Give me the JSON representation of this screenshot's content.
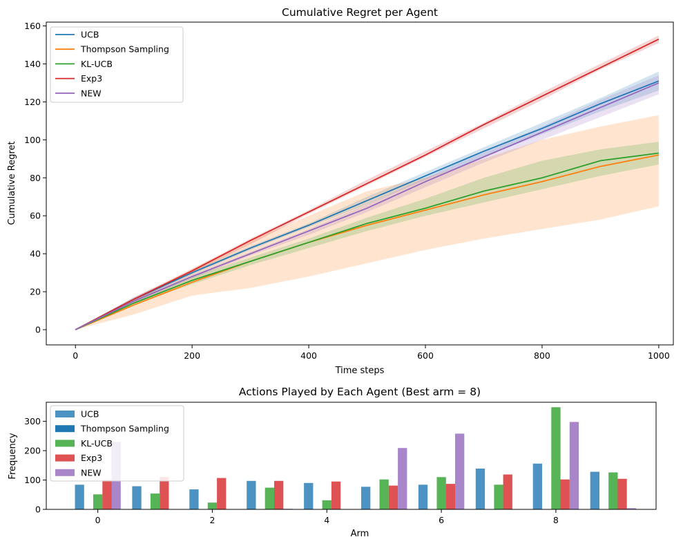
{
  "chart_data": [
    {
      "type": "line",
      "title": "Cumulative Regret per Agent",
      "xlabel": "Time steps",
      "ylabel": "Cumulative Regret",
      "xlim": [
        -50,
        1025
      ],
      "ylim": [
        -8,
        162
      ],
      "xticks": [
        0,
        200,
        400,
        600,
        800,
        1000
      ],
      "yticks": [
        0,
        20,
        40,
        60,
        80,
        100,
        120,
        140,
        160
      ],
      "grid": false,
      "legend_position": "upper-left",
      "shaded_band": true,
      "x": [
        0,
        100,
        200,
        300,
        400,
        500,
        600,
        700,
        800,
        900,
        1000
      ],
      "series": [
        {
          "name": "UCB",
          "color": "#1f77b4",
          "values": [
            0,
            16,
            30,
            43,
            55,
            68,
            81,
            94,
            106,
            119,
            131
          ],
          "lower": [
            0,
            15,
            29,
            42,
            54,
            66,
            79,
            91,
            103,
            115,
            126
          ],
          "upper": [
            0,
            17,
            31,
            44,
            56,
            70,
            83,
            96,
            109,
            122,
            136
          ]
        },
        {
          "name": "Thompson Sampling",
          "color": "#ff7f0e",
          "values": [
            0,
            13,
            25,
            36,
            46,
            55,
            63,
            71,
            78,
            86,
            92
          ],
          "lower": [
            0,
            8,
            18,
            22,
            28,
            35,
            42,
            48,
            53,
            58,
            65
          ],
          "upper": [
            0,
            16,
            32,
            47,
            60,
            73,
            80,
            90,
            100,
            107,
            113
          ]
        },
        {
          "name": "KL-UCB",
          "color": "#2ca02c",
          "values": [
            0,
            14,
            26,
            36,
            46,
            56,
            64,
            73,
            80,
            89,
            93
          ],
          "lower": [
            0,
            13,
            24,
            34,
            43,
            52,
            60,
            67,
            74,
            81,
            87
          ],
          "upper": [
            0,
            15,
            28,
            38,
            48,
            59,
            69,
            80,
            89,
            95,
            99
          ]
        },
        {
          "name": "Exp3",
          "color": "#d62728",
          "values": [
            0,
            16,
            31,
            47,
            62,
            77,
            92,
            108,
            123,
            138,
            153
          ],
          "lower": [
            0,
            15,
            30,
            45,
            61,
            76,
            91,
            106,
            121,
            137,
            151
          ],
          "upper": [
            0,
            17,
            32,
            48,
            63,
            79,
            94,
            109,
            125,
            140,
            155
          ]
        },
        {
          "name": "NEW",
          "color": "#9467bd",
          "values": [
            0,
            15,
            28,
            40,
            52,
            64,
            78,
            91,
            104,
            117,
            130
          ],
          "lower": [
            0,
            14,
            27,
            39,
            50,
            62,
            75,
            88,
            100,
            112,
            124
          ],
          "upper": [
            0,
            16,
            29,
            41,
            53,
            66,
            80,
            94,
            107,
            121,
            134
          ]
        }
      ]
    },
    {
      "type": "bar",
      "title": "Actions Played by Each Agent (Best arm = 8)",
      "xlabel": "Arm",
      "ylabel": "Frequency",
      "xlim": [
        -0.9,
        9.75
      ],
      "ylim": [
        0,
        365
      ],
      "xticks": [
        0,
        2,
        4,
        6,
        8
      ],
      "yticks": [
        0,
        100,
        200,
        300
      ],
      "grid": false,
      "legend_position": "upper-left",
      "categories": [
        0,
        1,
        2,
        3,
        4,
        5,
        6,
        7,
        8,
        9
      ],
      "series": [
        {
          "name": "UCB",
          "color": "#1f77b4",
          "alpha": 0.8,
          "values": [
            84,
            79,
            68,
            97,
            90,
            77,
            84,
            139,
            156,
            128
          ]
        },
        {
          "name": "Thompson Sampling",
          "color": "#1f77b4",
          "alpha": 1.0,
          "values": [
            0,
            0,
            0,
            0,
            0,
            0,
            0,
            0,
            0,
            0
          ]
        },
        {
          "name": "KL-UCB",
          "color": "#2ca02c",
          "alpha": 0.8,
          "values": [
            51,
            54,
            23,
            74,
            31,
            102,
            110,
            84,
            348,
            126
          ]
        },
        {
          "name": "Exp3",
          "color": "#d62728",
          "alpha": 0.8,
          "values": [
            100,
            110,
            107,
            97,
            95,
            81,
            87,
            119,
            102,
            104
          ]
        },
        {
          "name": "NEW",
          "color": "#9467bd",
          "alpha": 0.8,
          "values": [
            230,
            0,
            0,
            2,
            0,
            209,
            258,
            0,
            298,
            4
          ]
        }
      ]
    }
  ]
}
